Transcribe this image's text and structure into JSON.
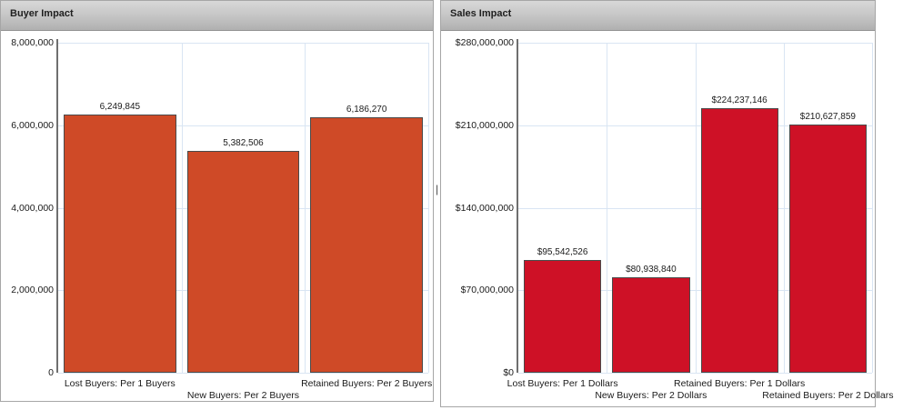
{
  "chart_data": [
    {
      "type": "bar",
      "title": "Buyer Impact",
      "categories": [
        "Lost Buyers: Per 1 Buyers",
        "New Buyers: Per 2 Buyers",
        "Retained Buyers: Per 2 Buyers"
      ],
      "values": [
        6249845,
        5382506,
        6186270
      ],
      "data_labels": [
        "6,249,845",
        "5,382,506",
        "6,186,270"
      ],
      "ytick_labels": [
        "8,000,000",
        "6,000,000",
        "4,000,000",
        "2,000,000",
        "0"
      ],
      "ylim": [
        0,
        8000000
      ],
      "xlabel": "",
      "ylabel": "",
      "grid": true,
      "legend_position": "none",
      "bar_color": "#cf4a27"
    },
    {
      "type": "bar",
      "title": "Sales Impact",
      "categories": [
        "Lost Buyers: Per 1 Dollars",
        "New Buyers: Per 2 Dollars",
        "Retained Buyers: Per 1 Dollars",
        "Retained Buyers: Per 2 Dollars"
      ],
      "values": [
        95542526,
        80938840,
        224237146,
        210627859
      ],
      "data_labels": [
        "$95,542,526",
        "$80,938,840",
        "$224,237,146",
        "$210,627,859"
      ],
      "ytick_labels": [
        "$280,000,000",
        "$210,000,000",
        "$140,000,000",
        "$70,000,000",
        "$0"
      ],
      "ylim": [
        0,
        280000000
      ],
      "xlabel": "",
      "ylabel": "",
      "grid": true,
      "legend_position": "none",
      "bar_color": "#ce1126"
    }
  ],
  "splitter": {
    "handle": "|"
  },
  "colors": {
    "buyer_bar": "#cf4a27",
    "sales_bar": "#ce1126",
    "gridline": "#d9e5f3",
    "axis_line": "#6f6f6f",
    "header_gradient_top": "#d8d8d8",
    "header_gradient_bottom": "#b0b0b0",
    "panel_border": "#a6a6a6"
  }
}
